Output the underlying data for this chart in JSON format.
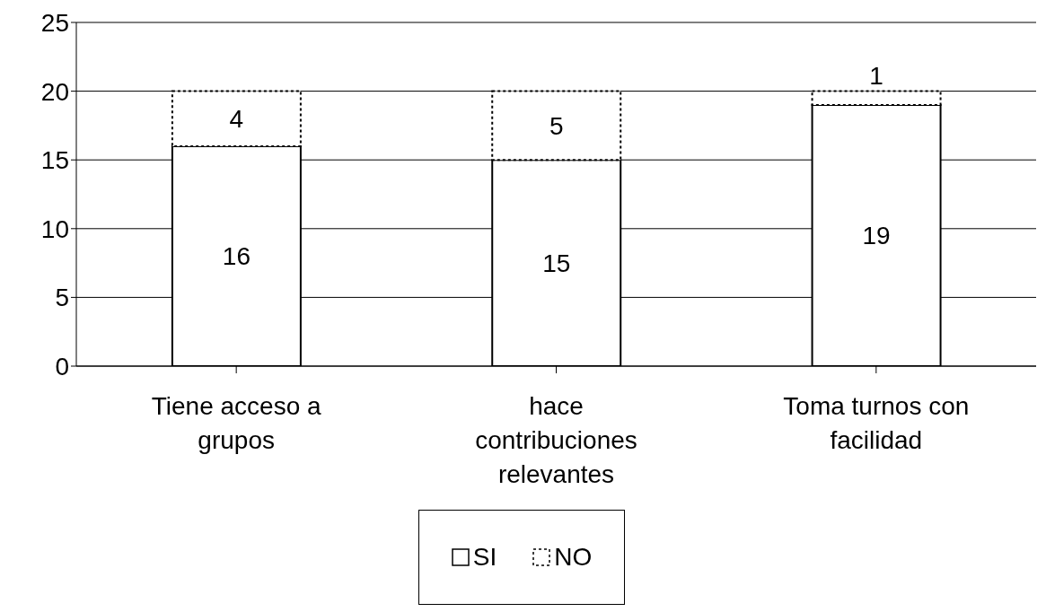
{
  "chart_data": {
    "type": "bar",
    "stacked": true,
    "categories": [
      "Tiene acceso a grupos",
      "hace contribuciones relevantes",
      "Toma turnos con facilidad"
    ],
    "series": [
      {
        "name": "SI",
        "color": "#ffffff",
        "line_style": "solid",
        "values": [
          16,
          15,
          19
        ]
      },
      {
        "name": "NO",
        "color": "#ffffff",
        "line_style": "dotted",
        "values": [
          4,
          5,
          1
        ]
      }
    ],
    "ylim": [
      0,
      25
    ],
    "yticks": [
      0,
      5,
      10,
      15,
      20,
      25
    ],
    "grid": "y",
    "legend": "bottom",
    "data_labels": true
  }
}
